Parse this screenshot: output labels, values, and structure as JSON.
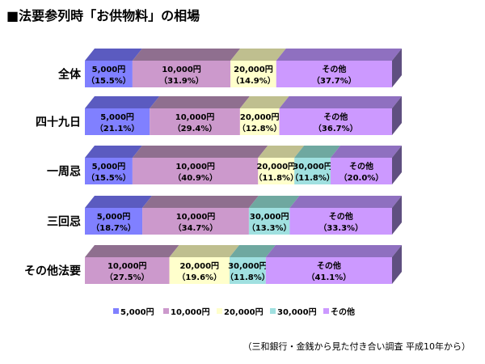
{
  "chart_data": {
    "type": "bar",
    "orientation": "horizontal",
    "stacked": true,
    "three_d": true,
    "title": "■法要参列時「お供物料」の相場",
    "note": "（三和銀行・金銭から見た付き合い調査  平成10年から）",
    "unit": "%",
    "xlim": [
      0,
      100
    ],
    "grid": false,
    "legend_position": "bottom",
    "categories": [
      "全体",
      "四十九日",
      "一周忌",
      "三回忌",
      "その他法要"
    ],
    "series": [
      {
        "name": "5,000円",
        "color": "#8080FF",
        "top_color": "#5B5BC0",
        "values": [
          15.5,
          21.1,
          15.5,
          18.7,
          null
        ]
      },
      {
        "name": "10,000円",
        "color": "#CC99CC",
        "top_color": "#8F6F8F",
        "values": [
          31.9,
          29.4,
          40.9,
          34.7,
          27.5
        ]
      },
      {
        "name": "20,000円",
        "color": "#FFFFCC",
        "top_color": "#BFBF8F",
        "values": [
          14.9,
          12.8,
          11.8,
          null,
          19.6
        ]
      },
      {
        "name": "30,000円",
        "color": "#A0E0E0",
        "top_color": "#6FA8A0",
        "values": [
          null,
          null,
          11.8,
          13.3,
          11.8
        ]
      },
      {
        "name": "その他",
        "color": "#CC99FF",
        "top_color": "#8F70C0",
        "values": [
          37.7,
          36.7,
          20.0,
          33.3,
          41.1
        ]
      }
    ],
    "side_color": "#5F4F80"
  }
}
